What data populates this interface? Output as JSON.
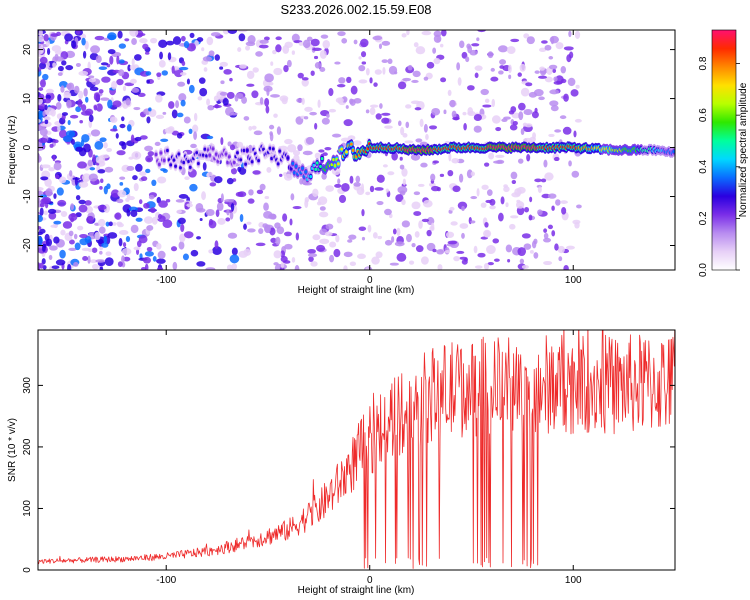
{
  "figure": {
    "title": "S233.2026.002.15.59.E08"
  },
  "chart_data": [
    {
      "type": "heatmap",
      "xlabel": "Height of straight line (km)",
      "ylabel": "Frequency (Hz)",
      "xlim": [
        -163,
        150
      ],
      "ylim": [
        -25,
        24
      ],
      "xticks": [
        -100,
        0,
        100
      ],
      "yticks": [
        -20,
        -10,
        0,
        10,
        20
      ],
      "ridge": {
        "x": [
          -100,
          -90,
          -80,
          -70,
          -60,
          -50,
          -40,
          -35,
          -30,
          -25,
          -20,
          -15,
          -10,
          -5,
          0,
          10,
          20,
          30,
          40,
          60,
          80,
          100,
          120,
          140,
          148
        ],
        "freq": [
          -2,
          -3,
          -1,
          -2,
          -2,
          -1,
          -3,
          -5.5,
          -5,
          -4,
          -3,
          -2,
          -0.5,
          -1,
          0,
          0,
          -0.5,
          -0.5,
          0,
          0,
          0,
          0,
          -0.5,
          -0.5,
          -1
        ],
        "amp": [
          0.25,
          0.28,
          0.25,
          0.22,
          0.3,
          0.28,
          0.3,
          0.35,
          0.4,
          0.5,
          0.6,
          0.7,
          0.75,
          0.8,
          0.85,
          0.88,
          0.9,
          0.9,
          0.85,
          0.9,
          0.9,
          0.85,
          0.65,
          0.45,
          0.35
        ]
      },
      "colorbar": {
        "label": "Normalized spectral amplitude",
        "range": [
          0,
          0.93
        ],
        "ticks": [
          0.0,
          0.2,
          0.4,
          0.6,
          0.8
        ],
        "colors": [
          "#ffffff",
          "#e7d0f7",
          "#b88cf0",
          "#7a2ee8",
          "#2a00e0",
          "#0a6cff",
          "#00d8ff",
          "#00ff9c",
          "#2ee800",
          "#b8ff00",
          "#ffe000",
          "#ff8800",
          "#ff2a00",
          "#ff1070"
        ]
      }
    },
    {
      "type": "line",
      "xlabel": "Height of straight line (km)",
      "ylabel": "SNR (10 * v/v)",
      "xlim": [
        -163,
        150
      ],
      "ylim": [
        0,
        390
      ],
      "xticks": [
        -100,
        0,
        100
      ],
      "yticks": [
        0,
        100,
        200,
        300
      ],
      "color": "#ee2a2a",
      "trend": {
        "x": [
          -163,
          -120,
          -100,
          -80,
          -60,
          -40,
          -25,
          -15,
          -5,
          5,
          15,
          25,
          35,
          45,
          60,
          80,
          100,
          120,
          150
        ],
        "snr": [
          14,
          18,
          22,
          30,
          45,
          65,
          100,
          140,
          190,
          230,
          255,
          275,
          290,
          295,
          300,
          300,
          305,
          300,
          305
        ]
      }
    }
  ]
}
